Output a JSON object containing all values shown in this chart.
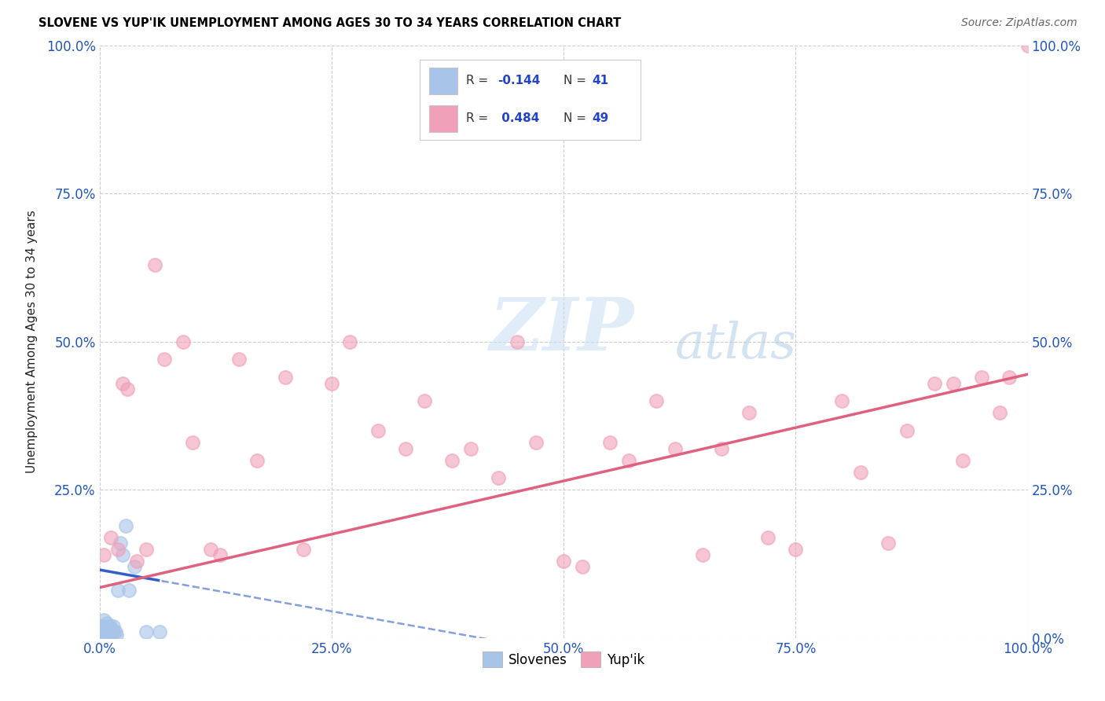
{
  "title": "SLOVENE VS YUP'IK UNEMPLOYMENT AMONG AGES 30 TO 34 YEARS CORRELATION CHART",
  "source": "Source: ZipAtlas.com",
  "ylabel": "Unemployment Among Ages 30 to 34 years",
  "xlim": [
    0,
    1.0
  ],
  "ylim": [
    0,
    1.0
  ],
  "xticks": [
    0.0,
    0.25,
    0.5,
    0.75,
    1.0
  ],
  "yticks": [
    0.0,
    0.25,
    0.5,
    0.75,
    1.0
  ],
  "xtick_labels": [
    "0.0%",
    "25.0%",
    "50.0%",
    "75.0%",
    "100.0%"
  ],
  "ytick_labels_left": [
    "",
    "25.0%",
    "50.0%",
    "75.0%",
    "100.0%"
  ],
  "ytick_labels_right": [
    "0.0%",
    "25.0%",
    "50.0%",
    "75.0%",
    "100.0%"
  ],
  "slovene_color": "#a8c4e8",
  "yupik_color": "#f0a0b8",
  "slovene_line_color": "#3060c8",
  "yupik_line_color": "#e06080",
  "legend_R_slovene": "-0.144",
  "legend_N_slovene": "41",
  "legend_R_yupik": "0.484",
  "legend_N_yupik": "49",
  "watermark_zip": "ZIP",
  "watermark_atlas": "atlas",
  "slovene_x": [
    0.002,
    0.003,
    0.003,
    0.004,
    0.004,
    0.005,
    0.005,
    0.005,
    0.006,
    0.006,
    0.006,
    0.007,
    0.007,
    0.007,
    0.008,
    0.008,
    0.008,
    0.009,
    0.009,
    0.009,
    0.01,
    0.01,
    0.01,
    0.011,
    0.011,
    0.012,
    0.012,
    0.013,
    0.014,
    0.015,
    0.016,
    0.017,
    0.018,
    0.02,
    0.022,
    0.025,
    0.028,
    0.032,
    0.038,
    0.05,
    0.065
  ],
  "slovene_y": [
    0.01,
    0.01,
    0.02,
    0.01,
    0.02,
    0.01,
    0.02,
    0.03,
    0.01,
    0.015,
    0.02,
    0.01,
    0.015,
    0.02,
    0.01,
    0.015,
    0.025,
    0.01,
    0.02,
    0.01,
    0.01,
    0.015,
    0.02,
    0.01,
    0.02,
    0.01,
    0.015,
    0.01,
    0.01,
    0.02,
    0.01,
    0.01,
    0.005,
    0.08,
    0.16,
    0.14,
    0.19,
    0.08,
    0.12,
    0.01,
    0.01
  ],
  "yupik_x": [
    0.005,
    0.012,
    0.02,
    0.025,
    0.03,
    0.04,
    0.05,
    0.06,
    0.07,
    0.09,
    0.1,
    0.12,
    0.13,
    0.15,
    0.17,
    0.2,
    0.22,
    0.25,
    0.27,
    0.3,
    0.33,
    0.35,
    0.38,
    0.4,
    0.43,
    0.45,
    0.47,
    0.5,
    0.52,
    0.55,
    0.57,
    0.6,
    0.62,
    0.65,
    0.67,
    0.7,
    0.72,
    0.75,
    0.8,
    0.82,
    0.85,
    0.87,
    0.9,
    0.92,
    0.93,
    0.95,
    0.97,
    0.98,
    1.0
  ],
  "yupik_y": [
    0.14,
    0.17,
    0.15,
    0.43,
    0.42,
    0.13,
    0.15,
    0.63,
    0.47,
    0.5,
    0.33,
    0.15,
    0.14,
    0.47,
    0.3,
    0.44,
    0.15,
    0.43,
    0.5,
    0.35,
    0.32,
    0.4,
    0.3,
    0.32,
    0.27,
    0.5,
    0.33,
    0.13,
    0.12,
    0.33,
    0.3,
    0.4,
    0.32,
    0.14,
    0.32,
    0.38,
    0.17,
    0.15,
    0.4,
    0.28,
    0.16,
    0.35,
    0.43,
    0.43,
    0.3,
    0.44,
    0.38,
    0.44,
    1.0
  ],
  "slovene_line_intercept": 0.115,
  "slovene_line_slope": -0.28,
  "yupik_line_intercept": 0.085,
  "yupik_line_slope": 0.36
}
